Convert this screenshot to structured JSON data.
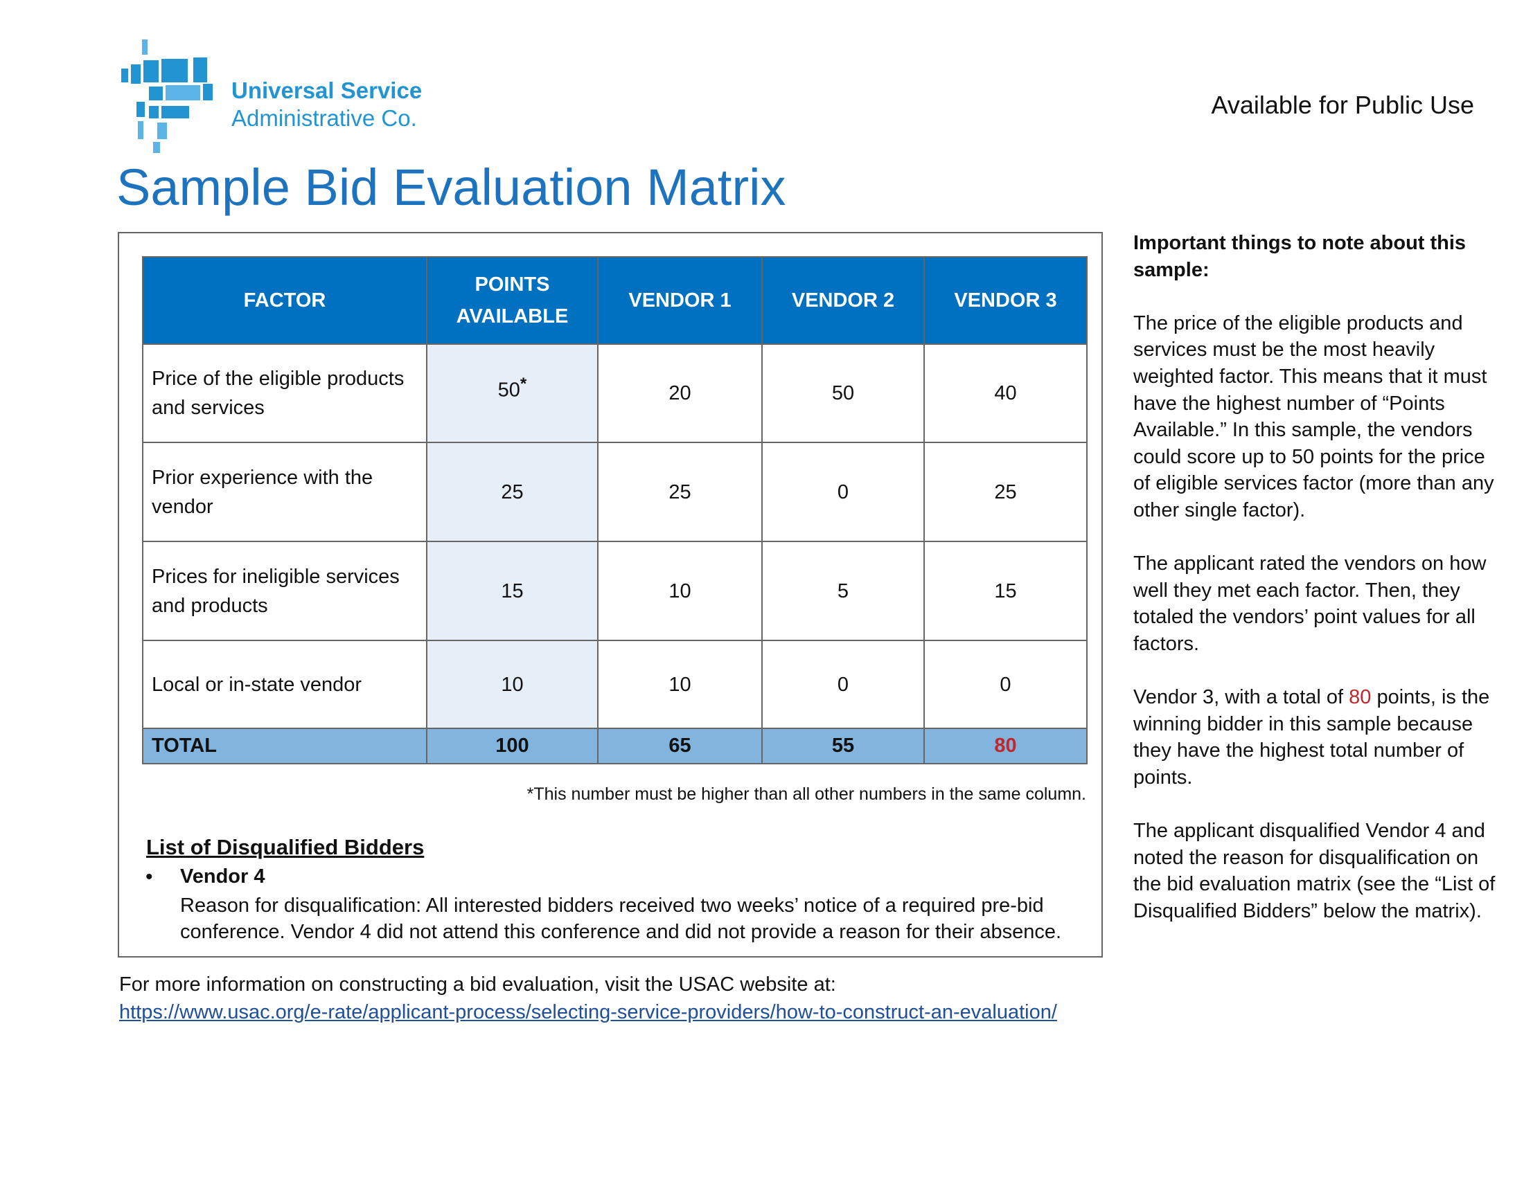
{
  "header": {
    "org_name": [
      "Universal Service",
      "Administrative Co."
    ],
    "availability": "Available for Public Use"
  },
  "title": "Sample Bid Evaluation Matrix",
  "table": {
    "columns": [
      "FACTOR",
      "POINTS AVAILABLE",
      "VENDOR 1",
      "VENDOR 2",
      "VENDOR 3"
    ],
    "rows": [
      {
        "factor": "Price of the eligible products and services",
        "points": 50,
        "points_marker": "*",
        "vendors": [
          20,
          50,
          40
        ]
      },
      {
        "factor": "Prior experience with the vendor",
        "points": 25,
        "vendors": [
          25,
          0,
          25
        ]
      },
      {
        "factor": "Prices for ineligible services and products",
        "points": 15,
        "vendors": [
          10,
          5,
          15
        ]
      },
      {
        "factor": "Local or in-state vendor",
        "points": 10,
        "vendors": [
          10,
          0,
          0
        ]
      }
    ],
    "total": {
      "label": "TOTAL",
      "points": 100,
      "vendors": [
        65,
        55,
        80
      ]
    },
    "footnote": "*This number must be higher than all other numbers in the same column."
  },
  "disqualified": {
    "heading": "List of Disqualified Bidders",
    "items": [
      {
        "name": "Vendor 4",
        "reason": "Reason for disqualification: All interested bidders received two weeks’ notice of a required pre-bid conference. Vendor 4 did not attend this conference and did not provide a reason for their absence."
      }
    ]
  },
  "footer": {
    "text": "For more information on constructing a bid evaluation, visit the USAC website at:",
    "link": "https://www.usac.org/e-rate/applicant-process/selecting-service-providers/how-to-construct-an-evaluation/"
  },
  "notes": {
    "heading": "Important things to note about this sample:",
    "paragraphs": [
      "The price of the eligible products and services must be the most heavily weighted factor. This means that it must have the highest number of “Points Available.” In this sample, the vendors could score up to 50 points for the price of eligible services factor (more than any other single factor).",
      "The applicant rated the vendors on how well they met each factor. Then, they totaled the vendors’ point values for all factors.",
      {
        "before": "Vendor 3, with a total of ",
        "highlight": "80",
        "after": " points, is the winning bidder in this sample because they have the highest total number of points."
      },
      "The applicant disqualified Vendor 4 and noted the reason for disqualification on the bid evaluation matrix (see the “List of Disqualified Bidders” below the matrix)."
    ]
  }
}
